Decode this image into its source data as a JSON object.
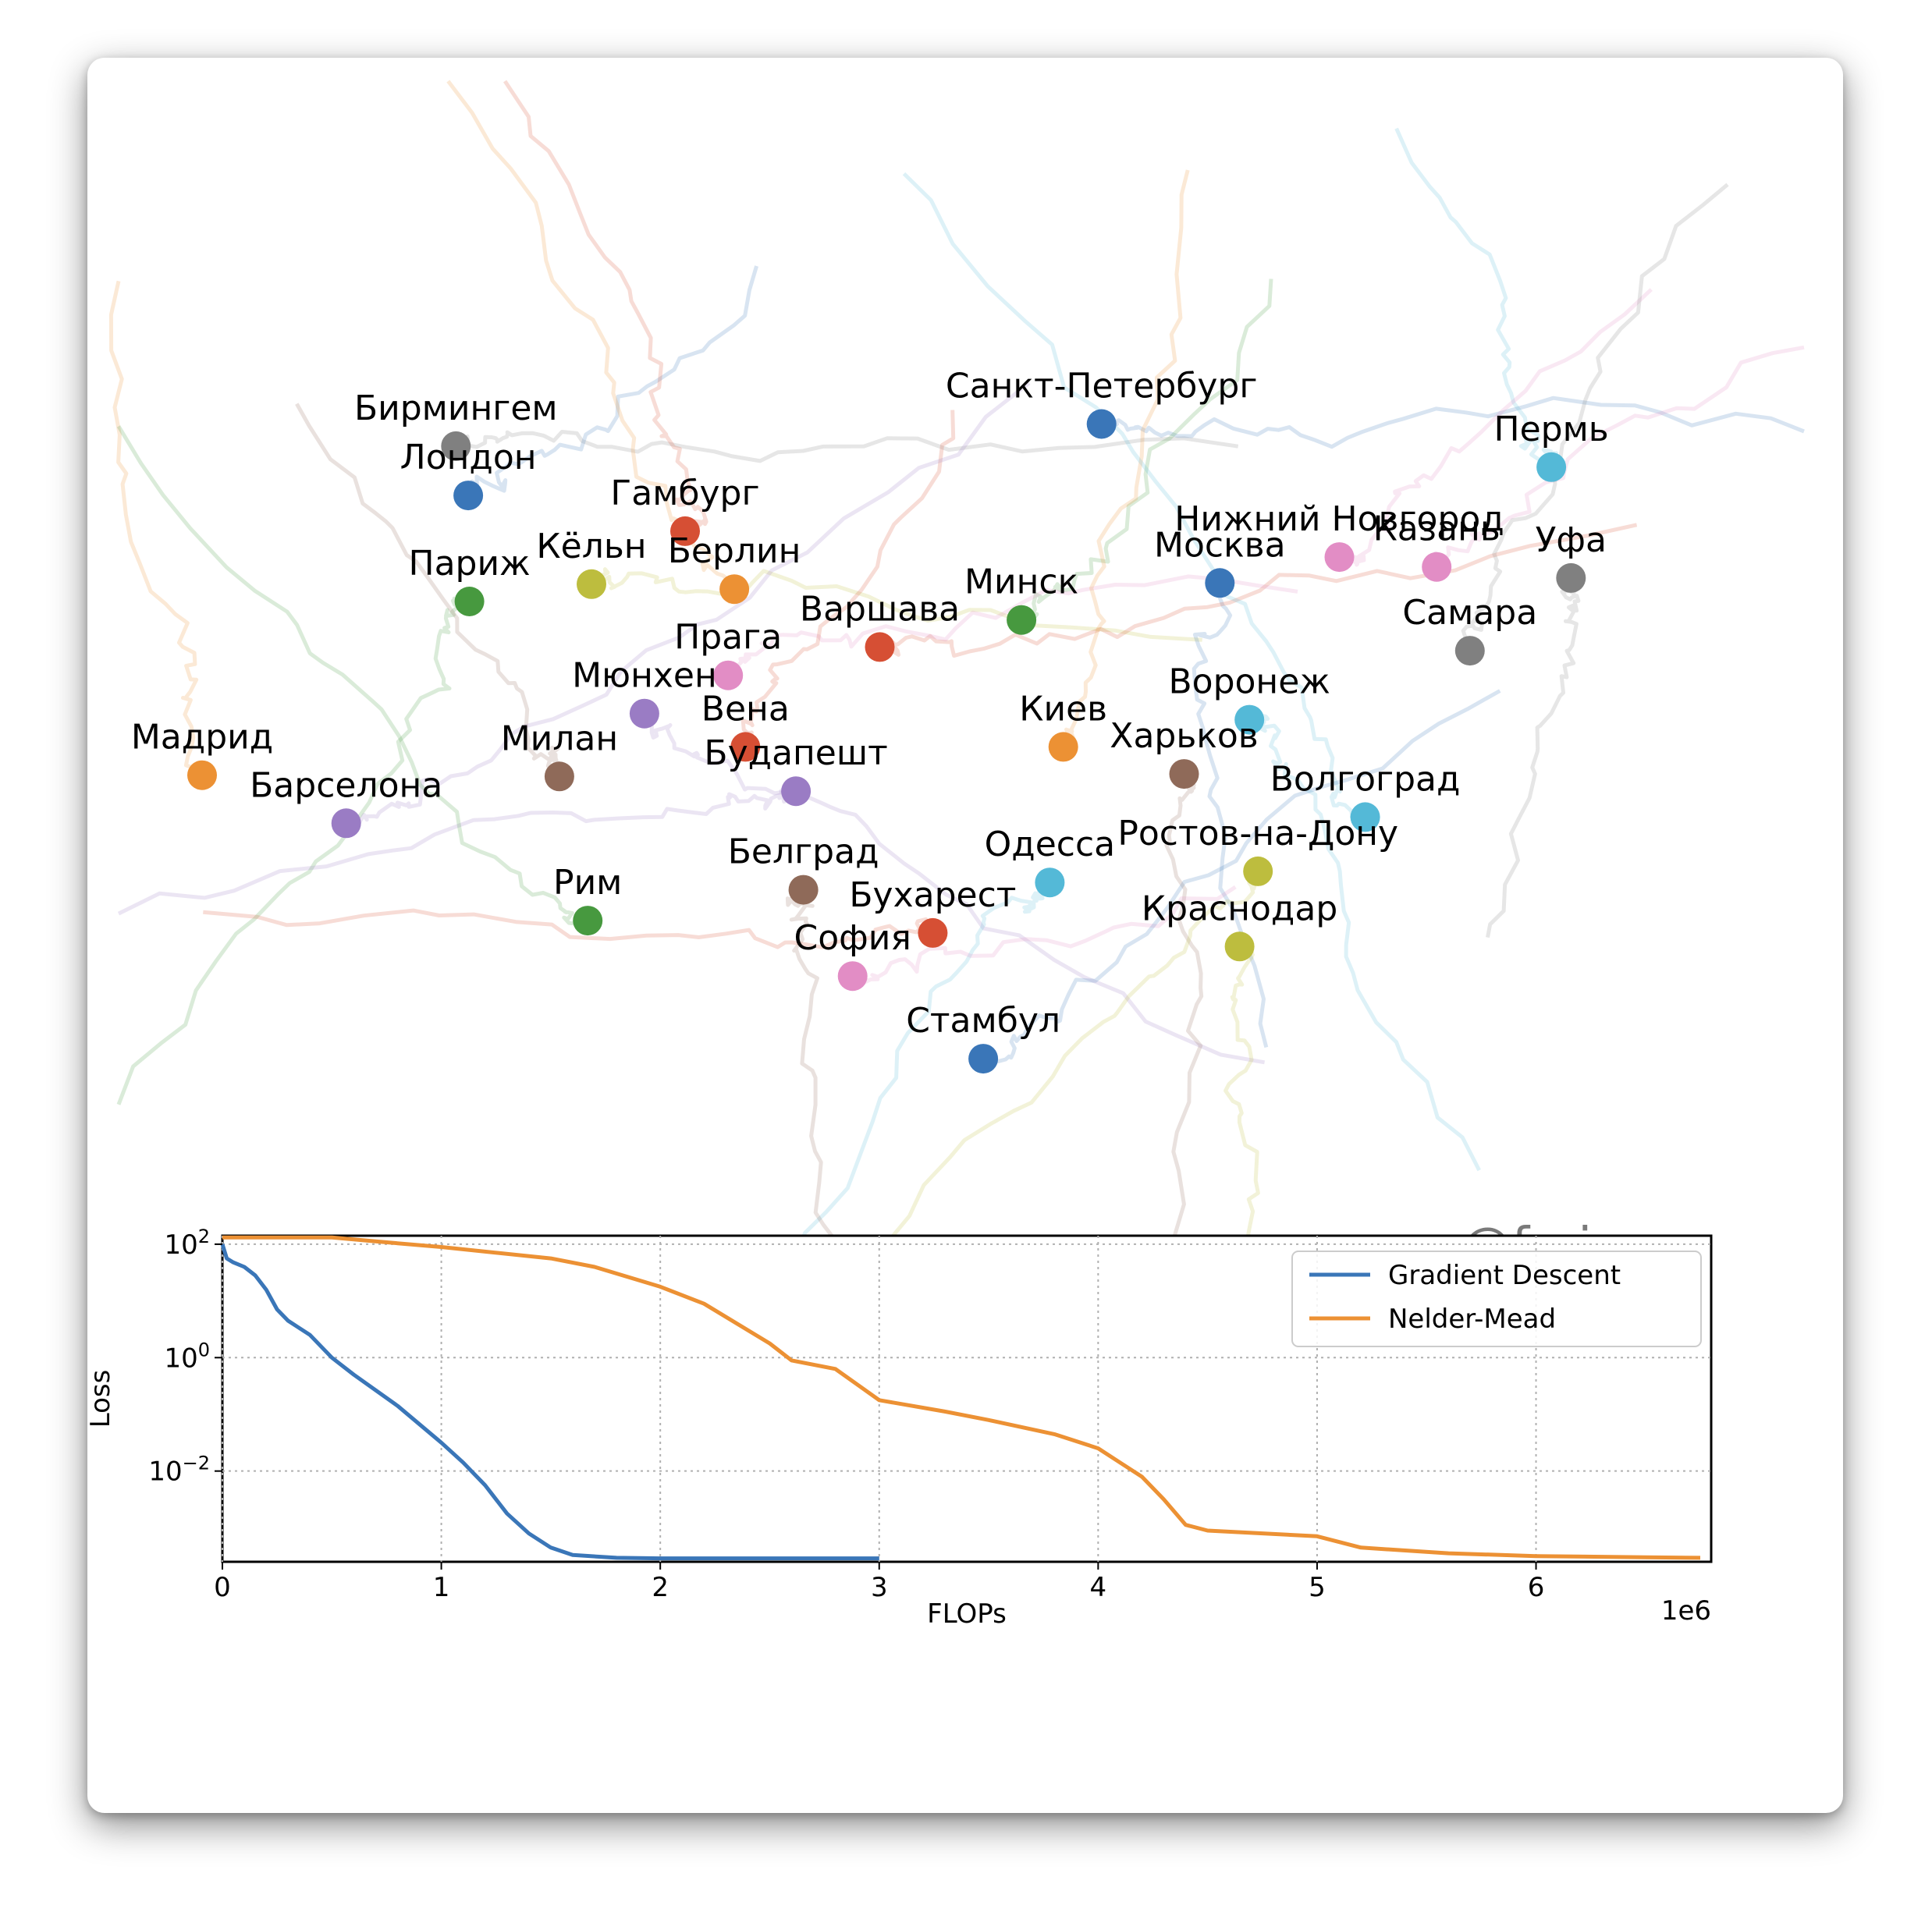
{
  "watermark": "@fminxyz",
  "colors": {
    "blue": "#3a76b8",
    "orange": "#ec9134",
    "green": "#47993f",
    "red": "#d64f34",
    "purple": "#9a7cc4",
    "brown": "#8f6a59",
    "pink": "#e28dc5",
    "gray": "#808080",
    "olive": "#bdbd3e",
    "cyan": "#54b9d7"
  },
  "chart_data": [
    {
      "type": "scatter",
      "title": "",
      "xlabel": "",
      "ylabel": "",
      "axes_visible": false,
      "trajectories_shown": true,
      "points": [
        {
          "label": "Бирмингем",
          "x": 370,
          "y": 362,
          "color": "gray"
        },
        {
          "label": "Лондон",
          "x": 380,
          "y": 402,
          "color": "blue"
        },
        {
          "label": "Гамбург",
          "x": 556,
          "y": 431,
          "color": "red"
        },
        {
          "label": "Санкт-Петербург",
          "x": 894,
          "y": 344,
          "color": "blue"
        },
        {
          "label": "Пермь",
          "x": 1259,
          "y": 379,
          "color": "cyan"
        },
        {
          "label": "Париж",
          "x": 381,
          "y": 488,
          "color": "green"
        },
        {
          "label": "Кёльн",
          "x": 480,
          "y": 474,
          "color": "olive"
        },
        {
          "label": "Берлин",
          "x": 596,
          "y": 478,
          "color": "orange"
        },
        {
          "label": "Нижний Новгород",
          "x": 1087,
          "y": 452,
          "color": "pink"
        },
        {
          "label": "Казань",
          "x": 1166,
          "y": 460,
          "color": "pink"
        },
        {
          "label": "Москва",
          "x": 990,
          "y": 473,
          "color": "blue"
        },
        {
          "label": "Уфа",
          "x": 1275,
          "y": 469,
          "color": "gray"
        },
        {
          "label": "Минск",
          "x": 829,
          "y": 503,
          "color": "green"
        },
        {
          "label": "Варшава",
          "x": 714,
          "y": 525,
          "color": "red"
        },
        {
          "label": "Прага",
          "x": 591,
          "y": 548,
          "color": "pink"
        },
        {
          "label": "Самара",
          "x": 1193,
          "y": 528,
          "color": "gray"
        },
        {
          "label": "Мюнхен",
          "x": 523,
          "y": 579,
          "color": "purple"
        },
        {
          "label": "Вена",
          "x": 605,
          "y": 606,
          "color": "red"
        },
        {
          "label": "Воронеж",
          "x": 1014,
          "y": 584,
          "color": "cyan"
        },
        {
          "label": "Киев",
          "x": 863,
          "y": 606,
          "color": "orange"
        },
        {
          "label": "Мадрид",
          "x": 164,
          "y": 629,
          "color": "orange"
        },
        {
          "label": "Милан",
          "x": 454,
          "y": 630,
          "color": "brown"
        },
        {
          "label": "Будапешт",
          "x": 646,
          "y": 642,
          "color": "purple"
        },
        {
          "label": "Харьков",
          "x": 961,
          "y": 628,
          "color": "brown"
        },
        {
          "label": "Барселона",
          "x": 281,
          "y": 668,
          "color": "purple"
        },
        {
          "label": "Волгоград",
          "x": 1108,
          "y": 663,
          "color": "cyan"
        },
        {
          "label": "Ростов-на-Дону",
          "x": 1021,
          "y": 707,
          "color": "olive"
        },
        {
          "label": "Одесса",
          "x": 852,
          "y": 716,
          "color": "cyan"
        },
        {
          "label": "Белград",
          "x": 652,
          "y": 722,
          "color": "brown"
        },
        {
          "label": "Рим",
          "x": 477,
          "y": 747,
          "color": "green"
        },
        {
          "label": "Бухарест",
          "x": 757,
          "y": 757,
          "color": "red"
        },
        {
          "label": "Краснодар",
          "x": 1006,
          "y": 768,
          "color": "olive"
        },
        {
          "label": "София",
          "x": 692,
          "y": 792,
          "color": "pink"
        },
        {
          "label": "Стамбул",
          "x": 798,
          "y": 859,
          "color": "blue"
        }
      ]
    },
    {
      "type": "line",
      "title": "",
      "xlabel": "FLOPs",
      "ylabel": "Loss",
      "x_multiplier": "1e6",
      "xlim": [
        0,
        6.8
      ],
      "ylim_log10": [
        -3.6,
        2.15
      ],
      "yscale": "log",
      "xticks": [
        0,
        1,
        2,
        3,
        4,
        5,
        6
      ],
      "yticks": [
        {
          "base": "10",
          "exp": "2",
          "value": 2
        },
        {
          "base": "10",
          "exp": "0",
          "value": 0
        },
        {
          "base": "10",
          "exp": "−2",
          "value": -2
        }
      ],
      "grid": true,
      "legend_position": "top-right",
      "series": [
        {
          "name": "Gradient Descent",
          "color": "blue",
          "x": [
            0,
            0.02,
            0.05,
            0.1,
            0.15,
            0.2,
            0.25,
            0.3,
            0.4,
            0.5,
            0.6,
            0.8,
            1.0,
            1.1,
            1.2,
            1.3,
            1.4,
            1.5,
            1.6,
            1.8,
            2.0,
            2.5,
            3.0
          ],
          "log10_y": [
            2.0,
            1.75,
            1.68,
            1.6,
            1.45,
            1.2,
            0.85,
            0.65,
            0.4,
            0.0,
            -0.3,
            -0.85,
            -1.5,
            -1.85,
            -2.25,
            -2.75,
            -3.1,
            -3.35,
            -3.48,
            -3.53,
            -3.54,
            -3.54,
            -3.54
          ]
        },
        {
          "name": "Nelder-Mead",
          "color": "orange",
          "x": [
            0,
            0.5,
            0.7,
            1.0,
            1.5,
            1.7,
            2.0,
            2.2,
            2.5,
            2.6,
            2.8,
            3.0,
            3.3,
            3.5,
            3.8,
            4.0,
            4.1,
            4.2,
            4.3,
            4.4,
            4.5,
            5.0,
            5.2,
            5.6,
            6.0,
            6.5,
            6.75
          ],
          "log10_y": [
            2.12,
            2.12,
            2.05,
            1.95,
            1.75,
            1.6,
            1.25,
            0.95,
            0.25,
            -0.05,
            -0.2,
            -0.75,
            -0.95,
            -1.1,
            -1.35,
            -1.6,
            -1.85,
            -2.1,
            -2.5,
            -2.95,
            -3.05,
            -3.15,
            -3.35,
            -3.45,
            -3.5,
            -3.52,
            -3.53
          ]
        }
      ]
    }
  ]
}
